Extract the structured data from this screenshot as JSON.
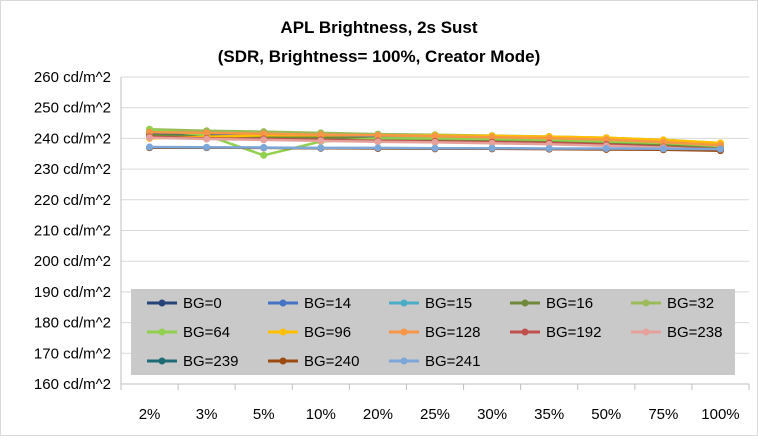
{
  "chart_data": {
    "type": "line",
    "title": "APL Brightness, 2s Sust",
    "subtitle": "(SDR, Brightness= 100%, Creator Mode)",
    "categories": [
      "2%",
      "3%",
      "5%",
      "10%",
      "20%",
      "25%",
      "30%",
      "35%",
      "50%",
      "75%",
      "100%"
    ],
    "ylim": [
      160,
      260
    ],
    "yticks": [
      160,
      170,
      180,
      190,
      200,
      210,
      220,
      230,
      240,
      250,
      260
    ],
    "ytick_labels": [
      "160 cd/m^2",
      "170 cd/m^2",
      "180 cd/m^2",
      "190 cd/m^2",
      "200 cd/m^2",
      "210 cd/m^2",
      "220 cd/m^2",
      "230 cd/m^2",
      "240 cd/m^2",
      "250 cd/m^2",
      "260 cd/m^2"
    ],
    "grid": true,
    "legend_position": "inside-bottom",
    "series": [
      {
        "name": "BG=0",
        "color": "#264478",
        "values": [
          241.5,
          241.0,
          240.5,
          240.0,
          239.5,
          239.2,
          239.0,
          238.8,
          238.3,
          237.5,
          236.5
        ]
      },
      {
        "name": "BG=14",
        "color": "#4472C4",
        "values": [
          242.0,
          241.6,
          241.2,
          240.8,
          240.4,
          240.1,
          239.8,
          239.5,
          239.0,
          238.0,
          237.0
        ]
      },
      {
        "name": "BG=15",
        "color": "#4BACC6",
        "values": [
          242.5,
          242.0,
          242.0,
          241.5,
          241.0,
          240.8,
          240.5,
          240.3,
          239.8,
          239.0,
          238.0
        ]
      },
      {
        "name": "BG=16",
        "color": "#70883A",
        "values": [
          241.0,
          240.8,
          240.5,
          240.2,
          240.0,
          239.8,
          239.5,
          239.2,
          238.8,
          238.0,
          237.0
        ]
      },
      {
        "name": "BG=32",
        "color": "#9BBB59",
        "values": [
          243.0,
          242.5,
          242.2,
          241.8,
          241.4,
          241.2,
          240.9,
          240.6,
          240.2,
          239.5,
          238.5
        ]
      },
      {
        "name": "BG=64",
        "color": "#92D050",
        "values": [
          243.0,
          241.0,
          234.5,
          239.0,
          240.0,
          240.0,
          239.8,
          239.5,
          239.0,
          238.5,
          237.5
        ]
      },
      {
        "name": "BG=96",
        "color": "#FFC000",
        "values": [
          240.0,
          240.5,
          241.0,
          241.0,
          241.0,
          240.9,
          240.8,
          240.6,
          240.2,
          239.5,
          238.5
        ]
      },
      {
        "name": "BG=128",
        "color": "#F79646",
        "values": [
          242.0,
          241.8,
          241.5,
          241.2,
          241.0,
          240.7,
          240.4,
          240.1,
          239.6,
          238.8,
          237.8
        ]
      },
      {
        "name": "BG=192",
        "color": "#C0504D",
        "values": [
          240.5,
          240.0,
          239.8,
          239.5,
          239.2,
          239.0,
          238.8,
          238.5,
          238.0,
          237.2,
          236.5
        ]
      },
      {
        "name": "BG=238",
        "color": "#E6A19B",
        "values": [
          240.2,
          239.8,
          239.5,
          239.2,
          238.9,
          238.7,
          238.4,
          238.1,
          237.6,
          237.0,
          236.2
        ]
      },
      {
        "name": "BG=239",
        "color": "#1F6B75",
        "values": [
          237.0,
          237.0,
          237.0,
          236.8,
          236.8,
          236.7,
          236.7,
          236.6,
          236.5,
          236.4,
          236.2
        ]
      },
      {
        "name": "BG=240",
        "color": "#9C4A12",
        "values": [
          237.0,
          237.0,
          236.9,
          236.8,
          236.7,
          236.6,
          236.6,
          236.5,
          236.4,
          236.3,
          236.0
        ]
      },
      {
        "name": "BG=241",
        "color": "#7DA7D9",
        "values": [
          237.2,
          237.1,
          237.0,
          236.9,
          236.9,
          236.8,
          236.8,
          236.7,
          236.7,
          236.6,
          236.5
        ]
      }
    ]
  }
}
